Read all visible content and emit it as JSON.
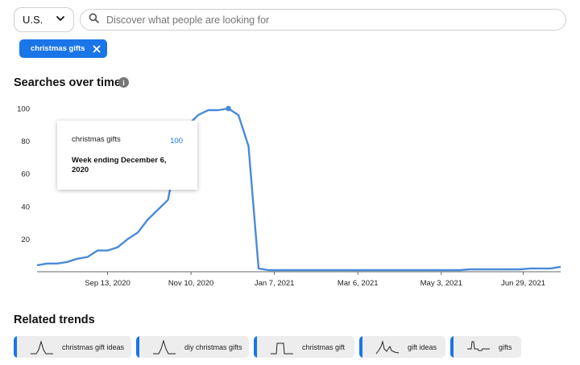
{
  "region": {
    "value": "U.S."
  },
  "search": {
    "placeholder": "Discover what people are looking for",
    "value": ""
  },
  "filter_chip": {
    "label": "christmas gifts"
  },
  "searches_over_time": {
    "title": "Searches over time"
  },
  "tooltip": {
    "term": "christmas gifts",
    "value": "100",
    "week": "Week ending December 6, 2020"
  },
  "related": {
    "title": "Related trends",
    "items": [
      {
        "label": "christmas gift ideas",
        "shape": "spike"
      },
      {
        "label": "diy christmas gifts",
        "shape": "spike"
      },
      {
        "label": "christmas gift",
        "shape": "plateau"
      },
      {
        "label": "gift ideas",
        "shape": "peaks"
      },
      {
        "label": "gifts",
        "shape": "step"
      }
    ]
  },
  "colors": {
    "accent": "#1a75e8",
    "line": "#4a8ad8"
  },
  "chart_data": {
    "type": "line",
    "title": "",
    "xlabel": "",
    "ylabel": "",
    "ylim": [
      0,
      100
    ],
    "yticks": [
      20,
      40,
      60,
      80,
      100
    ],
    "x_range": [
      "2020-07-26",
      "2021-07-25"
    ],
    "xticks": [
      {
        "date": "2020-09-13",
        "label": "Sep 13, 2020"
      },
      {
        "date": "2020-11-10",
        "label": "Nov 10, 2020"
      },
      {
        "date": "2021-01-07",
        "label": "Jan 7, 2021"
      },
      {
        "date": "2021-03-06",
        "label": "Mar 6, 2021"
      },
      {
        "date": "2021-05-03",
        "label": "May 3, 2021"
      },
      {
        "date": "2021-06-29",
        "label": "Jun 29, 2021"
      }
    ],
    "grid": false,
    "highlight": {
      "date": "2020-12-06",
      "value": 100
    },
    "series": [
      {
        "points": [
          [
            "2020-07-26",
            4
          ],
          [
            "2020-08-02",
            5
          ],
          [
            "2020-08-09",
            5
          ],
          [
            "2020-08-16",
            6
          ],
          [
            "2020-08-23",
            8
          ],
          [
            "2020-08-30",
            9
          ],
          [
            "2020-09-06",
            13
          ],
          [
            "2020-09-13",
            13
          ],
          [
            "2020-09-20",
            15
          ],
          [
            "2020-09-27",
            20
          ],
          [
            "2020-10-04",
            24
          ],
          [
            "2020-10-11",
            32
          ],
          [
            "2020-10-18",
            38
          ],
          [
            "2020-10-25",
            44
          ],
          [
            "2020-11-01",
            75
          ],
          [
            "2020-11-08",
            90
          ],
          [
            "2020-11-15",
            96
          ],
          [
            "2020-11-22",
            99
          ],
          [
            "2020-11-29",
            99
          ],
          [
            "2020-12-06",
            100
          ],
          [
            "2020-12-13",
            96
          ],
          [
            "2020-12-20",
            77
          ],
          [
            "2020-12-27",
            2
          ],
          [
            "2021-01-03",
            1
          ],
          [
            "2021-01-10",
            1
          ],
          [
            "2021-02-07",
            1
          ],
          [
            "2021-03-07",
            1
          ],
          [
            "2021-04-04",
            1
          ],
          [
            "2021-05-02",
            1
          ],
          [
            "2021-05-16",
            1
          ],
          [
            "2021-05-23",
            1.5
          ],
          [
            "2021-06-13",
            1.5
          ],
          [
            "2021-06-27",
            1.5
          ],
          [
            "2021-07-04",
            2
          ],
          [
            "2021-07-18",
            2
          ],
          [
            "2021-07-25",
            3
          ]
        ]
      }
    ]
  }
}
